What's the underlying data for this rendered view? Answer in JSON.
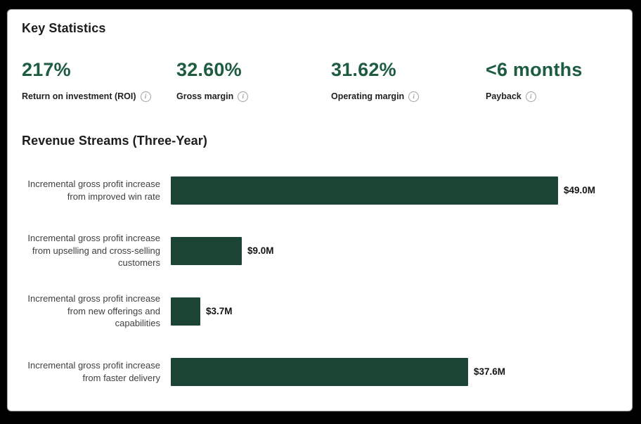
{
  "colors": {
    "stat_green": "#1e5c40",
    "bar_green": "#1b4435",
    "background": "#000000",
    "panel": "#ffffff"
  },
  "key_statistics": {
    "title": "Key Statistics",
    "stats": [
      {
        "value": "217%",
        "label": "Return on investment (ROI)"
      },
      {
        "value": "32.60%",
        "label": "Gross margin"
      },
      {
        "value": "31.62%",
        "label": "Operating margin"
      },
      {
        "value": "<6 months",
        "label": "Payback"
      }
    ],
    "info_glyph": "i"
  },
  "chart_data": {
    "type": "bar",
    "orientation": "horizontal",
    "title": "Revenue Streams (Three-Year)",
    "unit": "$M (USD millions)",
    "xlim": [
      0,
      49
    ],
    "grid": false,
    "legend": "none",
    "categories": [
      "Incremental gross profit increase from improved win rate",
      "Incremental gross profit increase from upselling and cross-selling customers",
      "Incremental gross profit increase from new offerings and capabilities",
      "Incremental gross profit increase from faster delivery"
    ],
    "category_lines": [
      [
        "Incremental gross profit increase",
        "from improved win rate"
      ],
      [
        "Incremental gross profit increase",
        "from upselling and cross-selling",
        "customers"
      ],
      [
        "Incremental gross profit increase",
        "from new offerings and",
        "capabilities"
      ],
      [
        "Incremental gross profit increase",
        "from faster delivery"
      ]
    ],
    "values": [
      49.0,
      9.0,
      3.7,
      37.6
    ],
    "value_labels": [
      "$49.0M",
      "$9.0M",
      "$3.7M",
      "$37.6M"
    ]
  }
}
